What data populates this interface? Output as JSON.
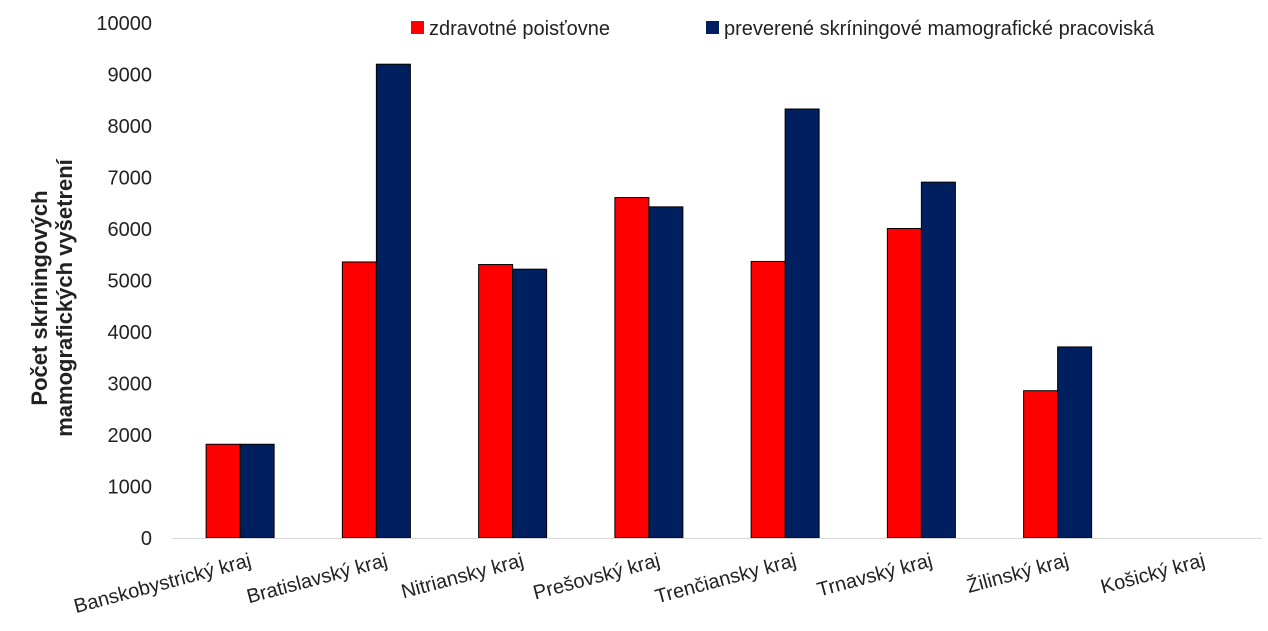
{
  "chart_data": {
    "type": "bar",
    "title": "",
    "xlabel": "",
    "ylabel_lines": [
      "Počet skríningových",
      "mamografických vyšetrení"
    ],
    "ylim": [
      0,
      10000
    ],
    "yticks": [
      0,
      1000,
      2000,
      3000,
      4000,
      5000,
      6000,
      7000,
      8000,
      9000,
      10000
    ],
    "categories": [
      "Banskobystrický kraj",
      "Bratislavský kraj",
      "Nitriansky kraj",
      "Prešovský kraj",
      "Trenčiansky kraj",
      "Trnavský kraj",
      "Žilinský kraj",
      "Košický kraj"
    ],
    "series": [
      {
        "name": "zdravotné poisťovne",
        "color": "#ff0000",
        "values": [
          1820,
          5360,
          5310,
          6610,
          5370,
          6010,
          2860,
          0
        ]
      },
      {
        "name": "preverené skríningové mamografické pracoviská",
        "color": "#001f5f",
        "values": [
          1820,
          9200,
          5220,
          6430,
          8330,
          6910,
          3710,
          0
        ]
      }
    ],
    "legend_position": "top",
    "grid": false
  }
}
